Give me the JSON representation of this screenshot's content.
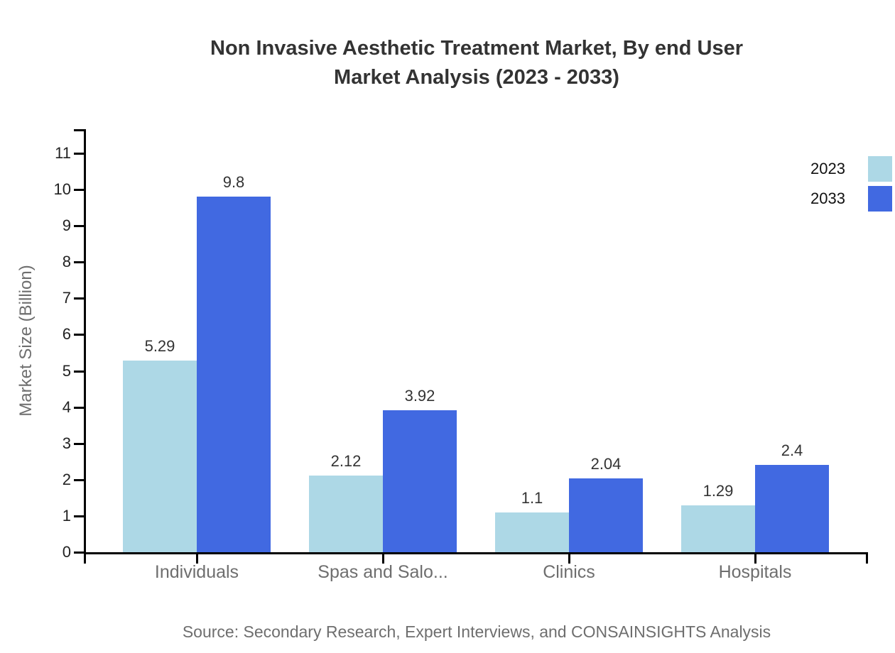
{
  "title": {
    "line1": "Non Invasive Aesthetic Treatment Market, By end User",
    "line2": "Market Analysis (2023 - 2033)"
  },
  "source_note": "Source: Secondary Research, Expert Interviews, and CONSAINSIGHTS Analysis",
  "chart_data": {
    "type": "bar",
    "categories": [
      "Individuals",
      "Spas and Salo...",
      "Clinics",
      "Hospitals"
    ],
    "series": [
      {
        "name": "2023",
        "color": "#ADD8E6",
        "values": [
          5.29,
          2.12,
          1.1,
          1.29
        ]
      },
      {
        "name": "2033",
        "color": "#4169E1",
        "values": [
          9.8,
          3.92,
          2.04,
          2.4
        ]
      }
    ],
    "ylabel": "Market Size (Billion)",
    "xlabel": "",
    "ylim": [
      0,
      11.7
    ],
    "yticks": [
      0,
      1,
      2,
      3,
      4,
      5,
      6,
      7,
      8,
      9,
      10,
      11
    ],
    "grid": false,
    "value_labels": true,
    "legend_position": "top-right",
    "axis_color": "#000000",
    "bar_value_text_color": "#333333",
    "category_text_color": "#6e6e6e"
  }
}
